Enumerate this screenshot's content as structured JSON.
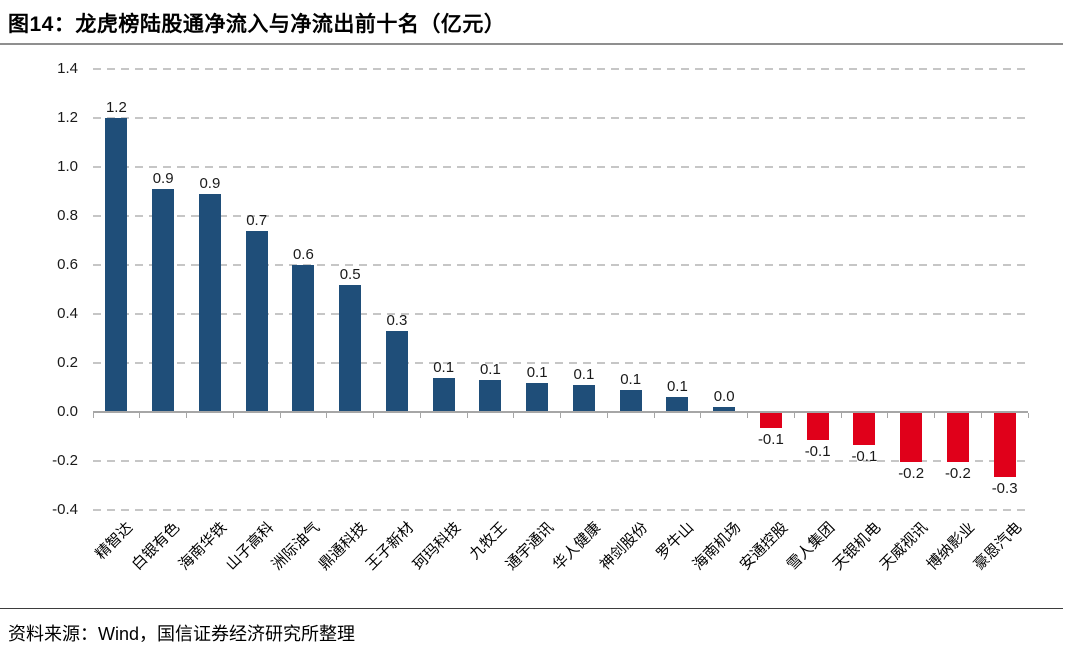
{
  "header": {
    "title": "图14：龙虎榜陆股通净流入与净流出前十名（亿元）"
  },
  "footer": {
    "source": "资料来源：Wind，国信证券经济研究所整理"
  },
  "chart_data": {
    "type": "bar",
    "title": "龙虎榜陆股通净流入与净流出前十名（亿元）",
    "unit": "亿元",
    "categories": [
      "精智达",
      "白银有色",
      "海南华铁",
      "山子高科",
      "洲际油气",
      "鼎通科技",
      "王子新材",
      "珂玛科技",
      "九牧王",
      "通宇通讯",
      "华人健康",
      "神剑股份",
      "罗牛山",
      "海南机场",
      "安通控股",
      "雪人集团",
      "天银机电",
      "天威视讯",
      "博纳影业",
      "豪恩汽电"
    ],
    "values": [
      1.2,
      0.91,
      0.89,
      0.74,
      0.6,
      0.52,
      0.33,
      0.14,
      0.13,
      0.12,
      0.11,
      0.09,
      0.06,
      0.02,
      -0.06,
      -0.11,
      -0.13,
      -0.2,
      -0.2,
      -0.26
    ],
    "value_labels": [
      "1.2",
      "0.9",
      "0.9",
      "0.7",
      "0.6",
      "0.5",
      "0.3",
      "0.1",
      "0.1",
      "0.1",
      "0.1",
      "0.1",
      "0.1",
      "0.0",
      "-0.1",
      "-0.1",
      "-0.1",
      "-0.2",
      "-0.2",
      "-0.3"
    ],
    "yticks": [
      1.4,
      1.2,
      1.0,
      0.8,
      0.6,
      0.4,
      0.2,
      0.0,
      -0.2,
      -0.4
    ],
    "ylim": [
      -0.4,
      1.4
    ],
    "grid": "horizontal-dashed",
    "legend": "none",
    "xlabel": "",
    "ylabel": "",
    "colors": {
      "positive_bar": "#1F4E79",
      "negative_bar": "#E0001A",
      "gridline": "#C6C6C6",
      "axis": "#A6A6A6"
    }
  }
}
